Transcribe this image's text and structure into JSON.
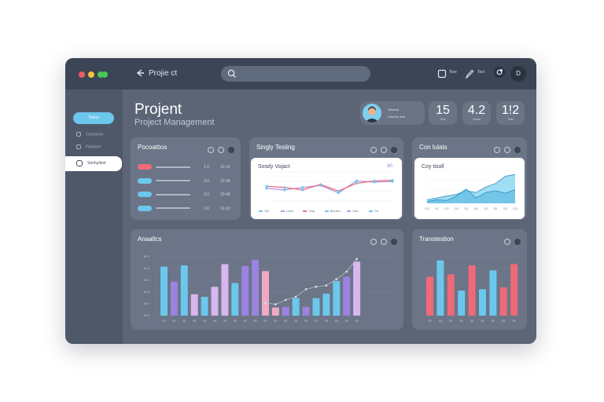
{
  "topbar": {
    "title": "Projie ct",
    "search_placeholder": "",
    "items": [
      {
        "label": "Tore",
        "icon": "square-icon"
      },
      {
        "label": "Toct",
        "icon": "pen-icon"
      }
    ],
    "avatar_initial": "D"
  },
  "sidebar": {
    "active_label": "Tooco",
    "items": [
      {
        "label": "Concsoon",
        "icon": "home-icon"
      },
      {
        "label": "Fasloore",
        "icon": "folder-icon"
      }
    ],
    "selected_label": "Sonhy/lent"
  },
  "header": {
    "title": "Projent",
    "subtitle": "Project Management",
    "profile": {
      "line1": "Tosaroe",
      "line2": "Cbomtc llcot"
    },
    "stats": [
      {
        "value": "15",
        "label": "Toce"
      },
      {
        "value": "4.2",
        "label": "Conce"
      },
      {
        "value": "1!2",
        "label": "Toas"
      }
    ]
  },
  "panels": {
    "list": {
      "title": "Pocoattios",
      "rows": [
        {
          "color": "#ef6a78",
          "a": "1.0",
          "b": "10.10"
        },
        {
          "color": "#6cc7ec",
          "a": "3.0",
          "b": "10.38"
        },
        {
          "color": "#6cc7ec",
          "a": "3.0",
          "b": "19.48"
        },
        {
          "color": "#6cc7ec",
          "a": "3.0",
          "b": "10.10"
        }
      ]
    },
    "line": {
      "title": "Singly Tesiing",
      "inner_title": "Sosdy Vojact",
      "value_label": "80",
      "legend": [
        {
          "label": "Toci",
          "color": "#6cc7ec"
        },
        {
          "label": "Lotico",
          "color": "#b49be6"
        },
        {
          "label": "Yosiy",
          "color": "#ef6a78"
        },
        {
          "label": "Bloccinn",
          "color": "#6cc7ec"
        },
        {
          "label": "Toao",
          "color": "#b49be6"
        },
        {
          "label": "Toli",
          "color": "#6cc7ec"
        }
      ]
    },
    "area": {
      "title": "Con lulats",
      "inner_title": "Coy tisoll",
      "x_labels": [
        "OO",
        "OC",
        "OO",
        "OS",
        "OO",
        "OA",
        "OO",
        "OE",
        "OO",
        "OO"
      ]
    },
    "bars": {
      "title": "Anaaltcs",
      "y_labels": [
        "10 0",
        "10 0",
        "10 0",
        "10 0",
        "10 0",
        "10 0"
      ],
      "x_labels": [
        "00",
        "0s",
        "00",
        "00",
        "00",
        "0s",
        "00",
        "00",
        "00",
        "00",
        "00",
        "00",
        "00",
        "0s",
        "00",
        "00",
        "00",
        "00",
        "00",
        "00"
      ]
    },
    "bars2": {
      "title": "Transtestion",
      "x_labels": [
        "00",
        "00",
        "00",
        "00",
        "00",
        "00",
        "00",
        "00",
        "00"
      ]
    }
  },
  "colors": {
    "cyan": "#6cc7ec",
    "purple": "#9b83e0",
    "lilac": "#d9b6ee",
    "pink": "#f0a9c4",
    "red": "#ef6a78",
    "dark": "#3c4556"
  },
  "chart_data": [
    {
      "type": "line",
      "x": [
        1,
        2,
        3,
        4,
        5,
        6,
        7,
        8
      ],
      "series": [
        {
          "values": [
            45,
            40,
            48,
            55,
            30,
            70,
            66,
            68
          ]
        },
        {
          "values": [
            52,
            48,
            40,
            58,
            36,
            62,
            70,
            72
          ]
        }
      ],
      "ylim": [
        0,
        100
      ]
    },
    {
      "type": "area",
      "x": [
        1,
        2,
        3,
        4,
        5,
        6,
        7,
        8,
        9,
        10
      ],
      "series": [
        {
          "values": [
            10,
            15,
            20,
            25,
            35,
            30,
            45,
            55,
            75,
            80
          ]
        },
        {
          "values": [
            5,
            10,
            8,
            20,
            40,
            15,
            30,
            35,
            28,
            38
          ]
        }
      ],
      "ylim": [
        0,
        100
      ]
    },
    {
      "type": "bar",
      "values": [
        78,
        54,
        80,
        34,
        30,
        46,
        82,
        52,
        79,
        89,
        71,
        13,
        14,
        28,
        14,
        28,
        35,
        55,
        62,
        86
      ],
      "line_overlay": [
        20,
        18,
        25,
        30,
        42,
        46,
        48,
        58,
        70,
        90
      ],
      "ylim": [
        0,
        100
      ]
    },
    {
      "type": "bar",
      "values": [
        62,
        88,
        66,
        40,
        80,
        42,
        72,
        45,
        82
      ],
      "ylim": [
        0,
        100
      ]
    }
  ]
}
